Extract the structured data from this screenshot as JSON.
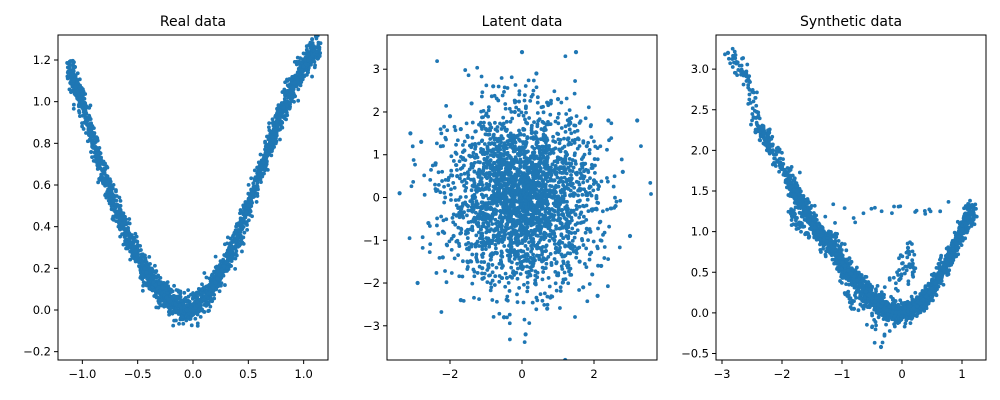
{
  "chart_data": [
    {
      "type": "scatter",
      "title": "Real data",
      "xlabel": "",
      "ylabel": "",
      "xlim": [
        -1.22,
        1.22
      ],
      "ylim": [
        -0.24,
        1.32
      ],
      "xticks": [
        -1.0,
        -0.5,
        0.0,
        0.5,
        1.0
      ],
      "xtick_labels": [
        "−1.0",
        "−0.5",
        "0.0",
        "0.5",
        "1.0"
      ],
      "yticks": [
        -0.2,
        0.0,
        0.2,
        0.4,
        0.6,
        0.8,
        1.0,
        1.2
      ],
      "ytick_labels": [
        "−0.2",
        "0.0",
        "0.2",
        "0.4",
        "0.6",
        "0.8",
        "1.0",
        "1.2"
      ],
      "grid": false,
      "color": "#1f77b4",
      "series": [
        {
          "x": [
            -1.13,
            -1.1,
            -1.08,
            -1.06,
            -1.04,
            -1.02,
            -1.0,
            -0.98,
            -0.96,
            -0.94,
            -0.92,
            -0.9,
            -0.88,
            -0.86,
            -0.84,
            -0.82,
            -0.8,
            -0.78,
            -0.76,
            -0.74,
            -0.72,
            -0.7,
            -0.68,
            -0.66,
            -0.64,
            -0.62,
            -0.6,
            -0.58,
            -0.56,
            -0.54,
            -0.52,
            -0.5,
            -0.48,
            -0.46,
            -0.44,
            -0.42,
            -0.4,
            -0.38,
            -0.36,
            -0.34,
            -0.32,
            -0.3,
            -0.28,
            -0.26,
            -0.24,
            -0.22,
            -0.2,
            -0.18,
            -0.16,
            -0.14,
            -0.12,
            -0.1,
            -0.08,
            -0.06,
            -0.04,
            -0.02,
            0.0,
            0.02,
            0.04,
            0.06,
            0.08,
            0.1,
            0.12,
            0.14,
            0.16,
            0.18,
            0.2,
            0.22,
            0.24,
            0.26,
            0.28,
            0.3,
            0.32,
            0.34,
            0.36,
            0.38,
            0.4,
            0.42,
            0.44,
            0.46,
            0.48,
            0.5,
            0.52,
            0.54,
            0.56,
            0.58,
            0.6,
            0.62,
            0.64,
            0.66,
            0.68,
            0.7,
            0.72,
            0.74,
            0.76,
            0.78,
            0.8,
            0.82,
            0.84,
            0.86,
            0.88,
            0.9,
            0.92,
            0.94,
            0.96,
            0.98,
            1.0,
            1.02,
            1.04,
            1.06,
            1.08,
            1.1,
            1.12,
            1.14
          ],
          "y": [
            1.14,
            1.13,
            1.1,
            1.07,
            1.05,
            1.02,
            1.0,
            0.95,
            0.92,
            0.88,
            0.84,
            0.8,
            0.77,
            0.74,
            0.7,
            0.67,
            0.63,
            0.6,
            0.58,
            0.55,
            0.52,
            0.49,
            0.47,
            0.44,
            0.41,
            0.39,
            0.36,
            0.34,
            0.32,
            0.3,
            0.28,
            0.26,
            0.24,
            0.22,
            0.2,
            0.18,
            0.16,
            0.15,
            0.13,
            0.12,
            0.1,
            0.09,
            0.08,
            0.07,
            0.06,
            0.05,
            0.04,
            0.03,
            0.03,
            0.02,
            0.02,
            0.01,
            0.01,
            0.0,
            0.0,
            0.0,
            0.0,
            0.01,
            0.02,
            0.03,
            0.04,
            0.05,
            0.07,
            0.08,
            0.1,
            0.11,
            0.13,
            0.15,
            0.17,
            0.19,
            0.21,
            0.23,
            0.25,
            0.28,
            0.3,
            0.33,
            0.35,
            0.38,
            0.41,
            0.44,
            0.47,
            0.5,
            0.52,
            0.56,
            0.59,
            0.62,
            0.65,
            0.68,
            0.71,
            0.74,
            0.77,
            0.8,
            0.83,
            0.86,
            0.89,
            0.92,
            0.94,
            0.97,
            1.0,
            1.02,
            1.05,
            1.07,
            1.09,
            1.11,
            1.13,
            1.15,
            1.17,
            1.18,
            1.2,
            1.21,
            1.22,
            1.23,
            1.24,
            1.25
          ]
        }
      ]
    },
    {
      "type": "scatter",
      "title": "Latent data",
      "xlabel": "",
      "ylabel": "",
      "xlim": [
        -3.75,
        3.75
      ],
      "ylim": [
        -3.8,
        3.8
      ],
      "xticks": [
        -2,
        0,
        2
      ],
      "xtick_labels": [
        "−2",
        "0",
        "2"
      ],
      "yticks": [
        -3,
        -2,
        -1,
        0,
        1,
        2,
        3
      ],
      "ytick_labels": [
        "−3",
        "−2",
        "−1",
        "0",
        "1",
        "2",
        "3"
      ],
      "grid": false,
      "color": "#1f77b4",
      "series": [
        {
          "x": [
            -3.4,
            -3.1,
            -2.9,
            -2.8,
            -2.6,
            -2.4,
            -2.2,
            -2.0,
            -1.9,
            -1.8,
            -1.7,
            -1.6,
            -1.5,
            -1.4,
            -1.3,
            -1.2,
            -1.1,
            -1.0,
            -0.9,
            -0.8,
            -0.7,
            -0.6,
            -0.5,
            -0.4,
            -0.3,
            -0.2,
            -0.1,
            0.0,
            0.1,
            0.2,
            0.3,
            0.4,
            0.5,
            0.6,
            0.7,
            0.8,
            0.9,
            1.0,
            1.1,
            1.2,
            1.3,
            1.4,
            1.5,
            1.6,
            1.7,
            1.8,
            1.9,
            2.0,
            2.2,
            2.4,
            2.6,
            2.8,
            3.0,
            3.2,
            -0.5,
            0.3,
            0.9,
            1.3,
            -1.2,
            -0.2,
            0.6,
            -0.8,
            0.1,
            1.6,
            -2.2,
            2.1,
            -1.7,
            0.8,
            -0.3,
            1.2
          ],
          "y": [
            0.1,
            1.5,
            -2.0,
            1.3,
            -0.6,
            0.8,
            -1.4,
            1.9,
            -0.9,
            0.5,
            -2.4,
            1.1,
            -0.2,
            2.2,
            -1.1,
            0.6,
            -1.9,
            1.6,
            -0.5,
            2.6,
            -1.3,
            0.3,
            -2.8,
            1.0,
            -0.7,
            2.0,
            -0.1,
            3.4,
            -3.2,
            0.9,
            -1.6,
            2.9,
            -0.4,
            1.4,
            -2.6,
            0.7,
            -1.0,
            2.3,
            -0.3,
            -3.8,
            1.7,
            -1.2,
            3.4,
            0.2,
            -2.1,
            1.2,
            -0.8,
            0.4,
            -1.6,
            1.8,
            -0.2,
            0.6,
            -0.9,
            1.8,
            0.0,
            -0.3,
            0.4,
            -0.6,
            0.2,
            0.5,
            -0.1,
            -0.4,
            0.7,
            -1.5,
            -0.8,
            -2.3,
            1.6,
            2.2,
            -0.9,
            0.9
          ]
        }
      ]
    },
    {
      "type": "scatter",
      "title": "Synthetic data",
      "xlabel": "",
      "ylabel": "",
      "xlim": [
        -3.1,
        1.4
      ],
      "ylim": [
        -0.58,
        3.42
      ],
      "xticks": [
        -3,
        -2,
        -1,
        0,
        1
      ],
      "xtick_labels": [
        "−3",
        "−2",
        "−1",
        "0",
        "1"
      ],
      "yticks": [
        -0.5,
        0.0,
        0.5,
        1.0,
        1.5,
        2.0,
        2.5,
        3.0
      ],
      "ytick_labels": [
        "−0.5",
        "0.0",
        "0.5",
        "1.0",
        "1.5",
        "2.0",
        "2.5",
        "3.0"
      ],
      "grid": false,
      "color": "#1f77b4",
      "series": [
        {
          "x": [
            -2.9,
            -2.6,
            -2.4,
            -2.3,
            -2.2,
            -2.1,
            -2.0,
            -1.9,
            -1.85,
            -1.8,
            -1.75,
            -1.7,
            -1.65,
            -1.6,
            -1.55,
            -1.5,
            -1.45,
            -1.4,
            -1.35,
            -1.3,
            -1.25,
            -1.2,
            -1.15,
            -1.1,
            -1.05,
            -1.0,
            -0.95,
            -0.9,
            -0.85,
            -0.8,
            -0.75,
            -0.7,
            -0.65,
            -0.6,
            -0.55,
            -0.5,
            -0.45,
            -0.4,
            -0.35,
            -0.3,
            -0.25,
            -0.2,
            -0.15,
            -0.1,
            -0.05,
            0.0,
            0.05,
            0.1,
            0.15,
            0.2,
            0.25,
            0.3,
            0.35,
            0.4,
            0.45,
            0.5,
            0.55,
            0.6,
            0.65,
            0.7,
            0.75,
            0.8,
            0.85,
            0.9,
            0.95,
            1.0,
            1.05,
            1.1,
            1.15,
            1.2,
            -1.85,
            -1.6,
            -1.0,
            -0.35,
            0.1,
            0.2,
            -0.8,
            -1.2
          ],
          "y": [
            3.2,
            2.95,
            2.3,
            2.2,
            2.05,
            1.95,
            1.8,
            1.7,
            1.55,
            1.45,
            1.5,
            1.38,
            1.3,
            1.25,
            1.2,
            1.1,
            1.05,
            1.0,
            0.95,
            0.9,
            0.88,
            0.85,
            0.8,
            0.72,
            0.68,
            0.62,
            0.58,
            0.52,
            0.48,
            0.45,
            0.4,
            0.35,
            0.3,
            0.26,
            0.22,
            0.18,
            0.14,
            0.1,
            0.08,
            0.05,
            0.03,
            0.02,
            0.01,
            0.0,
            0.0,
            0.0,
            0.01,
            0.02,
            0.04,
            0.06,
            0.08,
            0.12,
            0.16,
            0.2,
            0.25,
            0.3,
            0.36,
            0.42,
            0.48,
            0.55,
            0.62,
            0.7,
            0.78,
            0.86,
            0.94,
            1.02,
            1.1,
            1.17,
            1.23,
            1.28,
            1.22,
            0.98,
            0.85,
            -0.42,
            0.8,
            0.55,
            0.05,
            0.98
          ]
        }
      ]
    }
  ]
}
